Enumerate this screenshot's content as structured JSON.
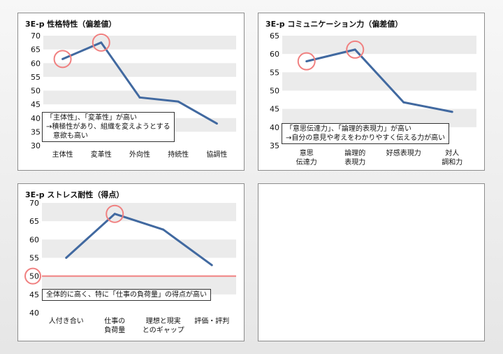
{
  "colors": {
    "line": "#4169a0",
    "circle": "#f08080",
    "refline": "#f08080",
    "band": "#ebebeb",
    "text": "#111111"
  },
  "chart_data": [
    {
      "type": "line",
      "title": "3E-p 性格特性（偏差値）",
      "categories": [
        "主体性",
        "変革性",
        "外向性",
        "持続性",
        "協調性"
      ],
      "values": [
        61.5,
        67.5,
        47.5,
        46,
        38
      ],
      "ylim": [
        30,
        70
      ],
      "yticks": [
        30,
        35,
        40,
        45,
        50,
        55,
        60,
        65,
        70
      ],
      "highlighted": [
        0,
        1
      ],
      "annotation": [
        "「主体性」、「変革性」が高い",
        "→積極性があり、組織を変えようとする",
        "意欲も高い"
      ]
    },
    {
      "type": "line",
      "title": "3E-p コミュニケーション力（偏差値）",
      "categories": [
        [
          "意思",
          "伝達力"
        ],
        [
          "論理的",
          "表現力"
        ],
        [
          "好感表現力"
        ],
        [
          "対人",
          "調和力"
        ]
      ],
      "values": [
        58,
        61.2,
        46.8,
        44.2
      ],
      "ylim": [
        35,
        65
      ],
      "yticks": [
        35,
        40,
        45,
        50,
        55,
        60,
        65
      ],
      "highlighted": [
        0,
        1
      ],
      "annotation": [
        "「意思伝達力」、「論理的表現力」が高い",
        "→自分の意見や考えをわかりやすく伝える力が高い"
      ]
    },
    {
      "type": "line",
      "title": "3E-p ストレス耐性（得点）",
      "categories": [
        [
          "人付き合い"
        ],
        [
          "仕事の",
          "負荷量"
        ],
        [
          "理想と現実",
          "とのギャップ"
        ],
        [
          "評価・評判"
        ]
      ],
      "values": [
        55,
        67,
        62.7,
        53
      ],
      "ylim": [
        40,
        70
      ],
      "yticks": [
        40,
        45,
        50,
        55,
        60,
        65,
        70
      ],
      "highlighted": [
        1
      ],
      "reference_line": 50,
      "annotation": [
        "全体的に高く、特に「仕事の負荷量」の得点が高い"
      ]
    }
  ]
}
